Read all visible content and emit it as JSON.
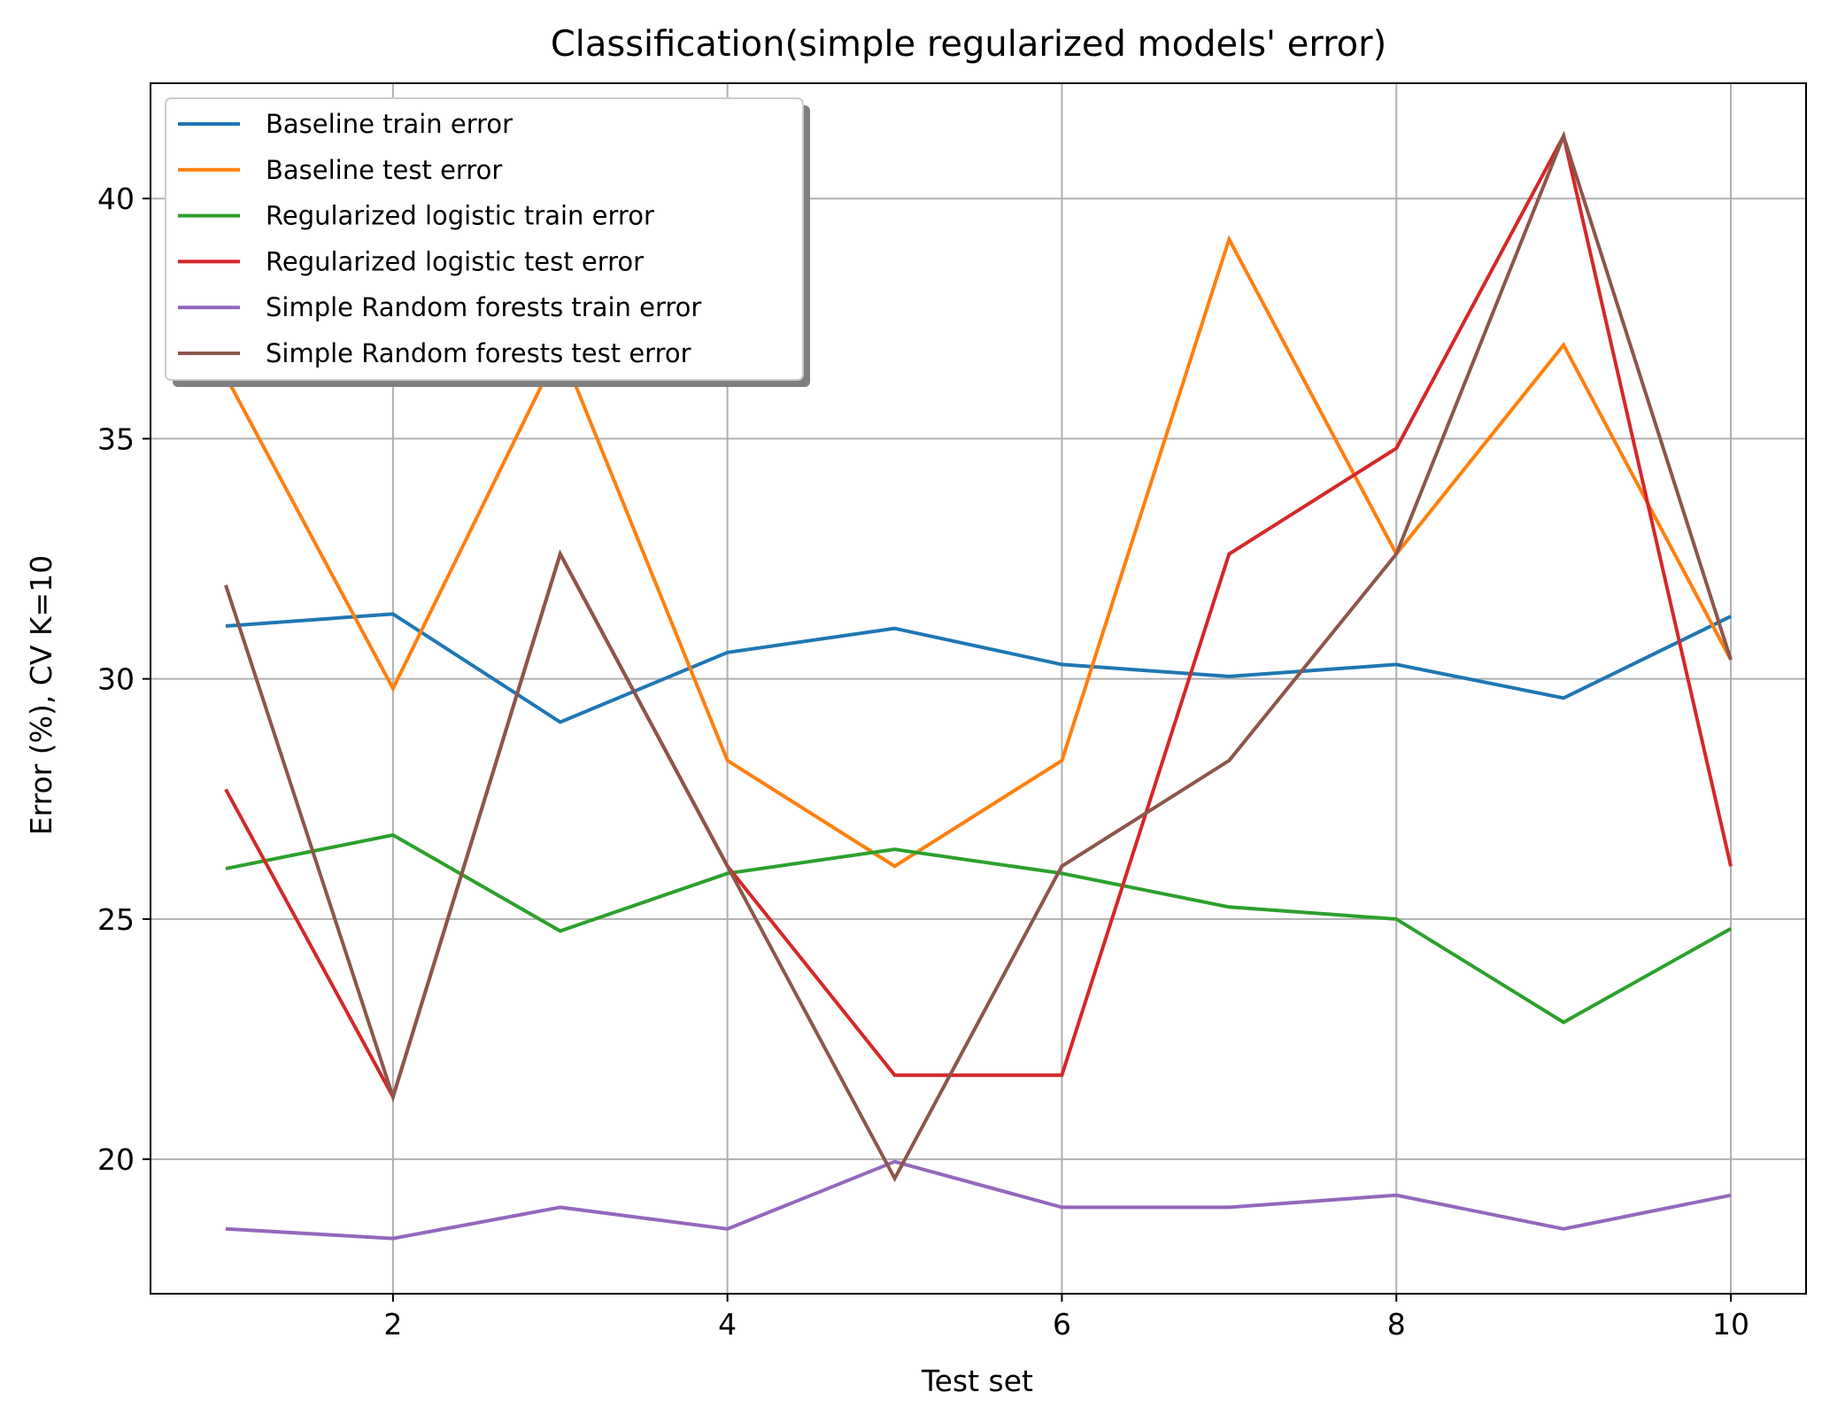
{
  "chart_data": {
    "type": "line",
    "title": "Classification(simple regularized models' error)",
    "xlabel": "Test set",
    "ylabel": "Error (%), CV K=10",
    "xlim": [
      0.55,
      10.45
    ],
    "ylim": [
      17.2,
      42.4
    ],
    "xticks": [
      2,
      4,
      6,
      8,
      10
    ],
    "yticks": [
      20,
      25,
      30,
      35,
      40
    ],
    "grid": true,
    "legend_position": "top-left",
    "x": [
      1,
      2,
      3,
      4,
      5,
      6,
      7,
      8,
      9,
      10
    ],
    "series": [
      {
        "name": "Baseline train error",
        "color": "#1f77b4",
        "values": [
          31.1,
          31.35,
          29.1,
          30.55,
          31.05,
          30.3,
          30.05,
          30.3,
          29.6,
          31.3
        ]
      },
      {
        "name": "Baseline test error",
        "color": "#ff7f0e",
        "values": [
          36.3,
          29.8,
          36.9,
          28.3,
          26.1,
          28.3,
          39.15,
          32.6,
          36.95,
          30.4
        ]
      },
      {
        "name": "Regularized logistic train error",
        "color": "#2ca02c",
        "values": [
          26.05,
          26.75,
          24.75,
          25.95,
          26.45,
          25.95,
          25.25,
          25.0,
          22.85,
          24.8
        ]
      },
      {
        "name": "Regularized logistic test error",
        "color": "#d62728",
        "values": [
          27.7,
          21.3,
          32.6,
          26.1,
          21.75,
          21.75,
          32.6,
          34.8,
          41.3,
          26.1
        ]
      },
      {
        "name": "Simple Random forests train error",
        "color": "#9467bd",
        "values": [
          18.55,
          18.35,
          19.0,
          18.55,
          19.95,
          19.0,
          19.0,
          19.25,
          18.55,
          19.25
        ]
      },
      {
        "name": "Simple Random forests test error",
        "color": "#8c564b",
        "values": [
          31.95,
          21.3,
          32.6,
          26.1,
          19.6,
          26.1,
          28.3,
          32.6,
          41.3,
          30.4
        ]
      }
    ]
  }
}
